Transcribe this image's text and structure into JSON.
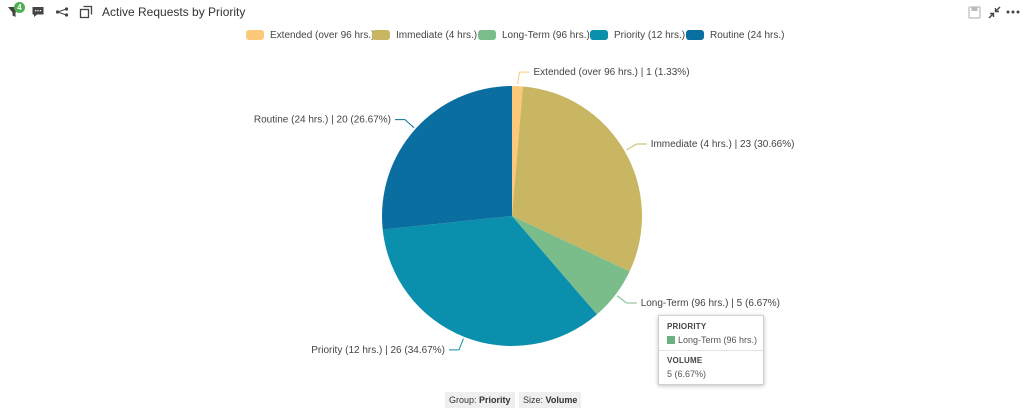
{
  "header": {
    "filter_count": "4",
    "title": "Active Requests by Priority",
    "icons": [
      "filter-icon",
      "comment-icon",
      "share-icon",
      "popout-icon",
      "save-icon",
      "collapse-icon",
      "more-icon"
    ]
  },
  "chart_data": {
    "type": "pie",
    "title": "Active Requests by Priority",
    "legend_position": "top",
    "legend": [
      "Extended (over 96 hrs.)",
      "Immediate (4 hrs.)",
      "Long-Term (96 hrs.)",
      "Priority (12 hrs.)",
      "Routine (24 hrs.)"
    ],
    "slices": [
      {
        "name": "Extended (over 96 hrs.)",
        "value": 1,
        "percent": "1.33%",
        "label": "Extended (over 96 hrs.) | 1 (1.33%)",
        "color": "#fcc97a"
      },
      {
        "name": "Immediate (4 hrs.)",
        "value": 23,
        "percent": "30.66%",
        "label": "Immediate (4 hrs.) | 23 (30.66%)",
        "color": "#c9b662"
      },
      {
        "name": "Long-Term (96 hrs.)",
        "value": 5,
        "percent": "6.67%",
        "label": "Long-Term (96 hrs.) | 5 (6.67%)",
        "color": "#7bbd8a"
      },
      {
        "name": "Priority (12 hrs.)",
        "value": 26,
        "percent": "34.67%",
        "label": "Priority (12 hrs.) | 26 (34.67%)",
        "color": "#0a8fad"
      },
      {
        "name": "Routine (24 hrs.)",
        "value": 20,
        "percent": "26.67%",
        "label": "Routine (24 hrs.) | 20 (26.67%)",
        "color": "#0a6fa0"
      }
    ]
  },
  "tooltip": {
    "heading1": "PRIORITY",
    "item": "Long-Term (96 hrs.)",
    "item_color": "#6ab27f",
    "heading2": "VOLUME",
    "value": "5 (6.67%)"
  },
  "footer": {
    "group_label": "Group:",
    "group_value": "Priority",
    "size_label": "Size:",
    "size_value": "Volume"
  }
}
